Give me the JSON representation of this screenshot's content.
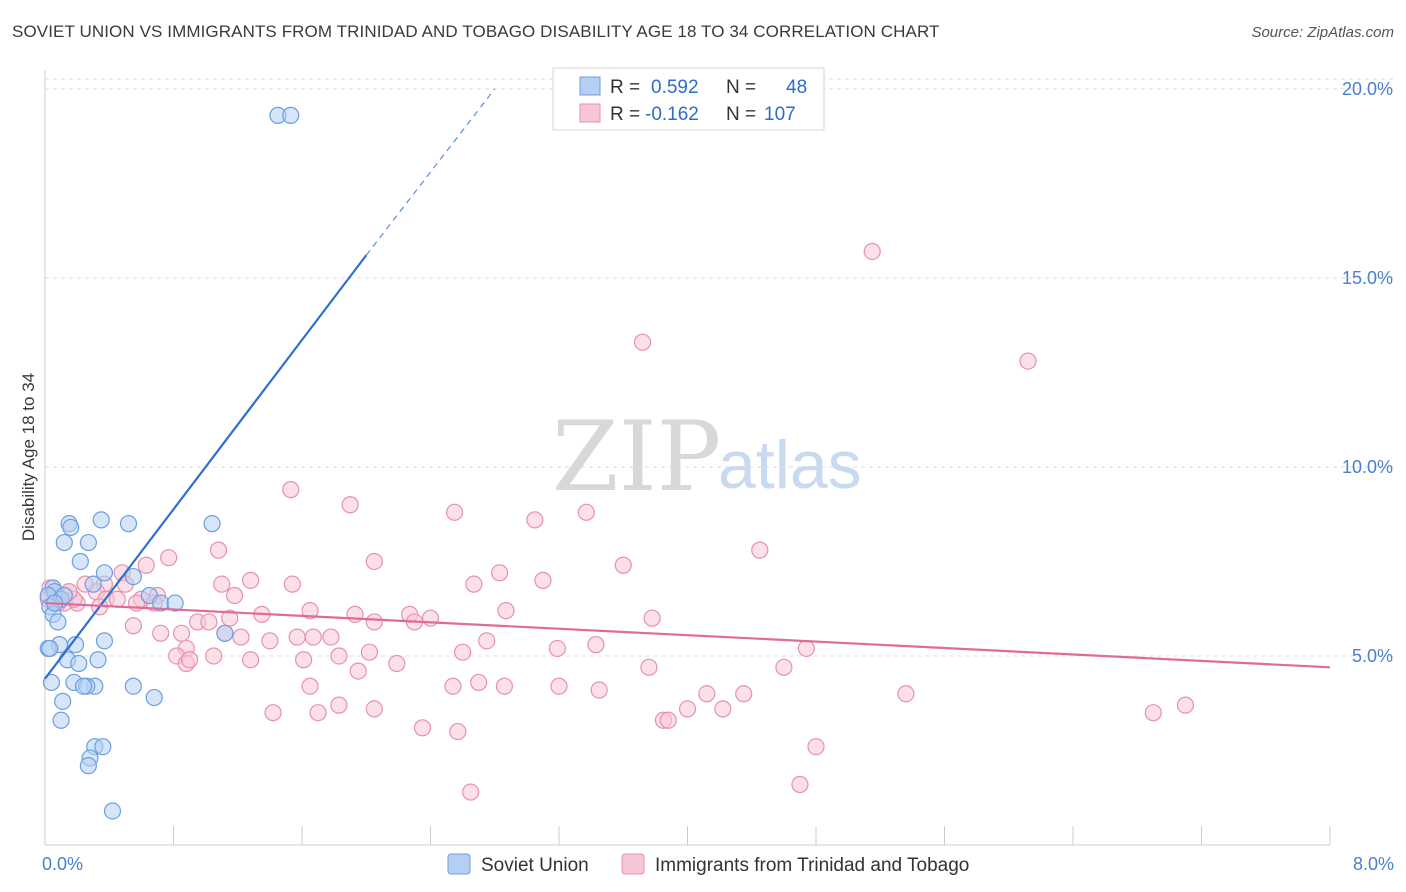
{
  "header": {
    "title": "SOVIET UNION VS IMMIGRANTS FROM TRINIDAD AND TOBAGO DISABILITY AGE 18 TO 34 CORRELATION CHART",
    "source": "Source: ZipAtlas.com"
  },
  "watermark": {
    "zip": "ZIP",
    "atlas": "atlas"
  },
  "legend": {
    "r_label": "R =",
    "n_label": "N =",
    "series": [
      {
        "r": "0.592",
        "n": "48"
      },
      {
        "r": "-0.162",
        "n": "107"
      }
    ]
  },
  "bottom_legend": [
    "Soviet Union",
    "Immigrants from Trinidad and Tobago"
  ],
  "chart_data": {
    "type": "scatter",
    "title": "SOVIET UNION VS IMMIGRANTS FROM TRINIDAD AND TOBAGO DISABILITY AGE 18 TO 34 CORRELATION CHART",
    "xlabel": "",
    "ylabel": "Disability Age 18 to 34",
    "xlim": [
      0,
      8
    ],
    "ylim": [
      0,
      20.5
    ],
    "x_tick_labels": [
      "0.0%",
      "8.0%"
    ],
    "y_ticks": [
      5,
      10,
      15,
      20
    ],
    "y_tick_labels": [
      "5.0%",
      "10.0%",
      "15.0%",
      "20.0%"
    ],
    "grid": true,
    "legend_position": "top-center",
    "series": [
      {
        "name": "Soviet Union",
        "color": "#6a9fe0",
        "fill": "#b4cff2",
        "r": 0.592,
        "n": 48,
        "trend": {
          "x0": 0.0,
          "y0": 4.4,
          "x1": 2.0,
          "y1": 15.6,
          "dashed_to_x": 2.8,
          "dashed_to_y": 20.0,
          "color": "#2f6fd0"
        },
        "x": [
          1.45,
          1.53,
          0.15,
          0.16,
          0.35,
          0.52,
          1.04,
          0.12,
          0.27,
          0.37,
          0.22,
          0.55,
          0.3,
          0.05,
          0.06,
          0.02,
          0.1,
          0.12,
          0.03,
          0.05,
          0.08,
          0.65,
          0.72,
          0.81,
          1.12,
          0.37,
          0.19,
          0.09,
          0.02,
          0.03,
          0.14,
          0.21,
          0.33,
          0.04,
          0.18,
          0.31,
          0.26,
          0.24,
          0.11,
          0.55,
          0.68,
          0.1,
          0.31,
          0.36,
          0.28,
          0.27,
          0.42,
          0.06
        ],
        "y": [
          19.3,
          19.3,
          8.5,
          8.4,
          8.6,
          8.5,
          8.5,
          8.0,
          8.0,
          7.2,
          7.5,
          7.1,
          6.9,
          6.8,
          6.7,
          6.6,
          6.5,
          6.6,
          6.3,
          6.1,
          5.9,
          6.6,
          6.4,
          6.4,
          5.6,
          5.4,
          5.3,
          5.3,
          5.2,
          5.2,
          4.9,
          4.8,
          4.9,
          4.3,
          4.3,
          4.2,
          4.2,
          4.2,
          3.8,
          4.2,
          3.9,
          3.3,
          2.6,
          2.6,
          2.3,
          2.1,
          0.9,
          6.4
        ]
      },
      {
        "name": "Immigrants from Trinidad and Tobago",
        "color": "#e890b0",
        "fill": "#f7c6d6",
        "r": -0.162,
        "n": 107,
        "trend": {
          "x0": 0.0,
          "y0": 6.4,
          "x1": 8.0,
          "y1": 4.7,
          "color": "#e06a98"
        },
        "x": [
          5.15,
          3.72,
          6.12,
          1.53,
          1.9,
          3.05,
          2.55,
          4.45,
          3.37,
          3.6,
          2.05,
          0.77,
          1.08,
          0.63,
          0.48,
          0.5,
          1.28,
          1.54,
          2.67,
          2.83,
          3.1,
          1.18,
          1.1,
          0.37,
          0.7,
          0.6,
          0.32,
          0.25,
          0.2,
          0.15,
          0.1,
          0.07,
          0.05,
          0.03,
          0.02,
          0.12,
          0.18,
          0.38,
          0.45,
          0.57,
          0.68,
          0.85,
          0.95,
          1.15,
          1.35,
          1.65,
          1.93,
          2.27,
          2.4,
          2.3,
          2.87,
          3.78,
          2.05,
          1.57,
          1.12,
          0.88,
          0.72,
          1.22,
          1.4,
          1.67,
          1.78,
          1.02,
          0.82,
          2.02,
          2.6,
          2.75,
          3.19,
          3.43,
          1.61,
          1.83,
          1.95,
          2.19,
          0.88,
          1.28,
          2.54,
          4.74,
          4.6,
          5.36,
          4.12,
          4.35,
          3.76,
          3.45,
          3.2,
          2.86,
          2.7,
          2.05,
          1.83,
          1.7,
          1.65,
          2.57,
          2.35,
          1.42,
          0.9,
          1.05,
          0.55,
          0.34,
          0.15,
          0.08,
          3.85,
          3.88,
          4.0,
          4.22,
          4.8,
          4.7,
          6.9,
          7.1,
          2.65
        ],
        "y": [
          15.7,
          13.3,
          12.8,
          9.4,
          9.0,
          8.6,
          8.8,
          7.8,
          8.8,
          7.4,
          7.5,
          7.6,
          7.8,
          7.4,
          7.2,
          6.9,
          7.0,
          6.9,
          6.9,
          7.2,
          7.0,
          6.6,
          6.9,
          6.9,
          6.6,
          6.5,
          6.7,
          6.9,
          6.4,
          6.7,
          6.5,
          6.6,
          6.6,
          6.8,
          6.5,
          6.4,
          6.5,
          6.5,
          6.5,
          6.4,
          6.4,
          5.6,
          5.9,
          6.0,
          6.1,
          6.2,
          6.1,
          6.1,
          6.0,
          5.9,
          6.2,
          6.0,
          5.9,
          5.5,
          5.6,
          5.2,
          5.6,
          5.5,
          5.4,
          5.5,
          5.5,
          5.9,
          5.0,
          5.1,
          5.1,
          5.4,
          5.2,
          5.3,
          4.9,
          5.0,
          4.6,
          4.8,
          4.8,
          4.9,
          4.2,
          5.2,
          4.7,
          4.0,
          4.0,
          4.0,
          4.7,
          4.1,
          4.2,
          4.2,
          4.3,
          3.6,
          3.7,
          3.5,
          4.2,
          3.0,
          3.1,
          3.5,
          4.9,
          5.0,
          5.8,
          6.3,
          6.7,
          6.4,
          3.3,
          3.3,
          3.6,
          3.6,
          2.6,
          1.6,
          3.5,
          3.7,
          1.4
        ]
      }
    ]
  }
}
